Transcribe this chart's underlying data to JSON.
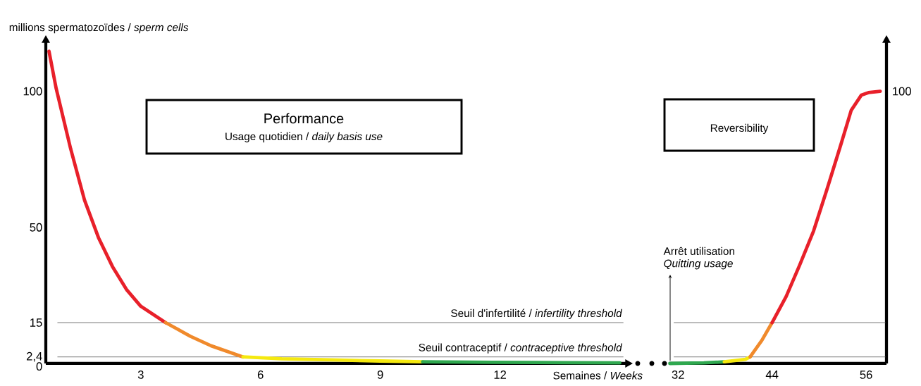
{
  "chart_data": [
    {
      "type": "line",
      "ylabel": "millions spermatozoïdes / *sperm cells*",
      "xlabel": "Semaines / *Weeks*",
      "xlim": [
        0.62,
        15.15
      ],
      "ylim": [
        0,
        118
      ],
      "xticks": [
        3,
        6,
        9,
        12
      ],
      "yticks": [
        {
          "value": 0,
          "label": "0"
        },
        {
          "value": 2.4,
          "label": "2,4"
        },
        15,
        50,
        100
      ],
      "series": [
        {
          "color": "#e8202a",
          "x": [
            0.7,
            0.88,
            1.24,
            1.59,
            1.94,
            2.29,
            2.65,
            3.0,
            3.62
          ],
          "values": [
            114.7,
            101,
            79,
            60,
            46.2,
            35.6,
            27,
            21,
            15
          ]
        },
        {
          "color": "#f08a2c",
          "x": [
            3.62,
            4.24,
            4.76,
            5.56
          ],
          "values": [
            15,
            10,
            6.5,
            2.4
          ]
        },
        {
          "color": "#f5e90f",
          "x": [
            5.56,
            6.53,
            7.76,
            9.0,
            10.06
          ],
          "values": [
            2.4,
            1.7,
            1.3,
            0.9,
            0.6
          ]
        },
        {
          "color": "#2fa84f",
          "x": [
            10.06,
            11.82,
            13.59,
            15.0
          ],
          "values": [
            0.6,
            0.4,
            0.3,
            0.2
          ]
        }
      ],
      "ref_lines": [
        {
          "axis": "y",
          "value": 15,
          "label": "Seuil d'infertilité / *infertility threshold*",
          "color": "#555555"
        },
        {
          "axis": "y",
          "value": 2.4,
          "label": "Seuil contraceptif / *contraceptive threshold*",
          "color": "#555555"
        }
      ],
      "annotations": [
        "Performance",
        "Usage quotidien / *daily basis use*"
      ]
    },
    {
      "type": "line",
      "xlim": [
        30.9,
        58.6
      ],
      "ylim": [
        0,
        118
      ],
      "xticks": [
        32,
        44,
        56
      ],
      "tick_labels": "x",
      "series": [
        {
          "color": "#2fa84f",
          "x": [
            30.95,
            35.3,
            37.9
          ],
          "values": [
            0,
            0.2,
            0.6
          ]
        },
        {
          "color": "#f5e90f",
          "x": [
            37.9,
            40.6,
            41.2
          ],
          "values": [
            0.6,
            1.5,
            2.4
          ]
        },
        {
          "color": "#f08a2c",
          "x": [
            41.2,
            42.7,
            44.0
          ],
          "values": [
            2.4,
            8.5,
            15
          ]
        },
        {
          "color": "#e8202a",
          "x": [
            44.0,
            45.8,
            47.5,
            49.3,
            51.0,
            52.8,
            54.1,
            55.4,
            56.3,
            57.8
          ],
          "values": [
            15,
            24.6,
            36,
            48.7,
            63.9,
            80.6,
            93,
            98.6,
            99.5,
            100
          ]
        }
      ],
      "ref_lines": [
        {
          "axis": "y",
          "value": 15,
          "color": "#555555"
        },
        {
          "axis": "y",
          "value": 2.4,
          "color": "#555555"
        }
      ],
      "annotations": [
        "Reversibility",
        "Arrêt utilisation",
        "*Quitting usage*",
        {
          "text": "100",
          "x": 57.8,
          "y": 100
        }
      ]
    }
  ]
}
